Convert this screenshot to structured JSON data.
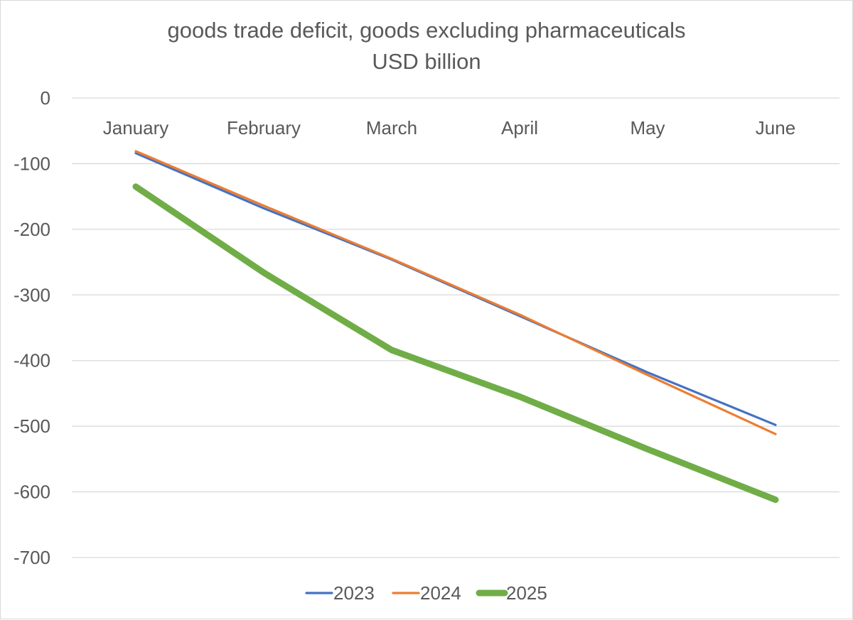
{
  "chart_data": {
    "type": "line",
    "title": "goods trade deficit, goods excluding pharmaceuticals",
    "subtitle": "USD billion",
    "xlabel": "",
    "ylabel": "",
    "categories": [
      "January",
      "February",
      "March",
      "April",
      "May",
      "June"
    ],
    "ylim": [
      -700,
      0
    ],
    "yticks": [
      0,
      -100,
      -200,
      -300,
      -400,
      -500,
      -600,
      -700
    ],
    "grid": true,
    "legend_position": "bottom",
    "series": [
      {
        "name": "2023",
        "color": "#4472c4",
        "values": [
          -84,
          -168,
          -246,
          -332,
          -418,
          -498
        ]
      },
      {
        "name": "2024",
        "color": "#ed7d31",
        "values": [
          -81,
          -164,
          -245,
          -330,
          -422,
          -512
        ]
      },
      {
        "name": "2025",
        "color": "#70ad47",
        "values": [
          -135,
          -266,
          -384,
          -455,
          -535,
          -612
        ]
      }
    ]
  }
}
